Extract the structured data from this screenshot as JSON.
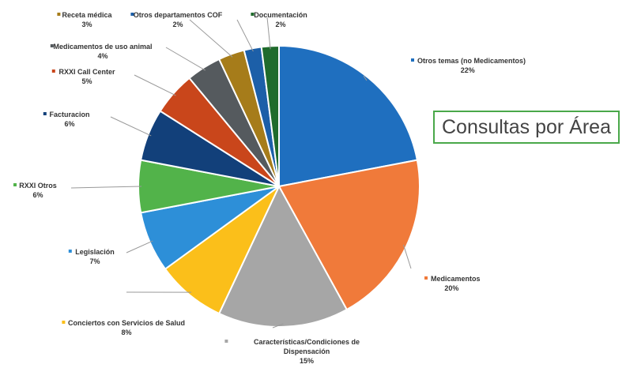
{
  "chart_data": {
    "type": "pie",
    "title": "Consultas por Área",
    "unit": "%",
    "slices": [
      {
        "name": "Otros temas (no Medicamentos)",
        "value": 22,
        "label": "22%",
        "color": "#1f6fbf"
      },
      {
        "name": "Medicamentos",
        "value": 20,
        "label": "20%",
        "color": "#f07a3a"
      },
      {
        "name": "Características/Condiciones de Dispensación",
        "value": 15,
        "label": "15%",
        "color": "#a6a6a6"
      },
      {
        "name": "Conciertos con Servicios de Salud",
        "value": 8,
        "label": "8%",
        "color": "#fbbf1a"
      },
      {
        "name": "Legislación",
        "value": 7,
        "label": "7%",
        "color": "#2d8fd8"
      },
      {
        "name": "RXXI Otros",
        "value": 6,
        "label": "6%",
        "color": "#52b34a"
      },
      {
        "name": "Facturacion",
        "value": 6,
        "label": "6%",
        "color": "#12407a"
      },
      {
        "name": "RXXI Call Center",
        "value": 5,
        "label": "5%",
        "color": "#c9461b"
      },
      {
        "name": "Medicamentos de uso animal",
        "value": 4,
        "label": "4%",
        "color": "#555a5e"
      },
      {
        "name": "Receta médica",
        "value": 3,
        "label": "3%",
        "color": "#a67c1a"
      },
      {
        "name": "Otros departamentos COF",
        "value": 2,
        "label": "2%",
        "color": "#1c5fa8"
      },
      {
        "name": "Documentación",
        "value": 2,
        "label": "2%",
        "color": "#1f6b2c"
      }
    ]
  }
}
